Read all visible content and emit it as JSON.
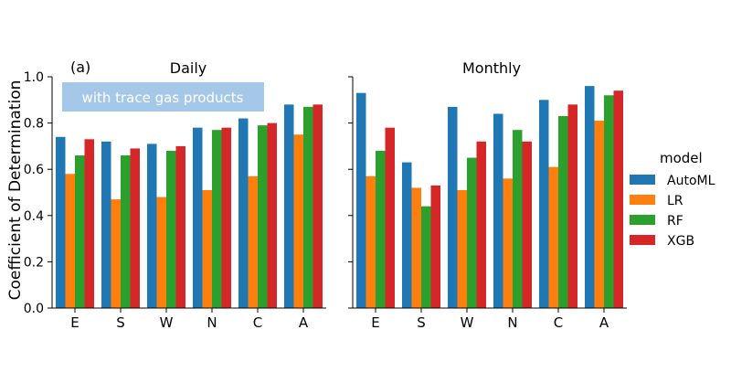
{
  "panel_label": "(a)",
  "annotation": "with trace gas products",
  "ylabel": "Coefficient of Determination",
  "legend_title": "model",
  "colors": {
    "AutoML": "#1f77b4",
    "LR": "#ff7f0e",
    "RF": "#2ca02c",
    "XGB": "#d62728",
    "annotation_box": "#a6c8e8"
  },
  "chart_data": [
    {
      "type": "bar",
      "title": "Daily",
      "ylim": [
        0,
        1.0
      ],
      "yticks": [
        "0.0",
        "0.2",
        "0.4",
        "0.6",
        "0.8",
        "1.0"
      ],
      "categories": [
        "E",
        "S",
        "W",
        "N",
        "C",
        "A"
      ],
      "series": [
        {
          "name": "AutoML",
          "values": [
            0.74,
            0.72,
            0.71,
            0.78,
            0.82,
            0.88
          ]
        },
        {
          "name": "LR",
          "values": [
            0.58,
            0.47,
            0.48,
            0.51,
            0.57,
            0.75
          ]
        },
        {
          "name": "RF",
          "values": [
            0.66,
            0.66,
            0.68,
            0.77,
            0.79,
            0.87
          ]
        },
        {
          "name": "XGB",
          "values": [
            0.73,
            0.69,
            0.7,
            0.78,
            0.8,
            0.88
          ]
        }
      ],
      "legend": "right",
      "grid": false
    },
    {
      "type": "bar",
      "title": "Monthly",
      "ylim": [
        0,
        1.0
      ],
      "categories": [
        "E",
        "S",
        "W",
        "N",
        "C",
        "A"
      ],
      "series": [
        {
          "name": "AutoML",
          "values": [
            0.93,
            0.63,
            0.87,
            0.84,
            0.9,
            0.96
          ]
        },
        {
          "name": "LR",
          "values": [
            0.57,
            0.52,
            0.51,
            0.56,
            0.61,
            0.81
          ]
        },
        {
          "name": "RF",
          "values": [
            0.68,
            0.44,
            0.65,
            0.77,
            0.83,
            0.92
          ]
        },
        {
          "name": "XGB",
          "values": [
            0.78,
            0.53,
            0.72,
            0.72,
            0.88,
            0.94
          ]
        }
      ],
      "legend": "right",
      "grid": false
    }
  ]
}
